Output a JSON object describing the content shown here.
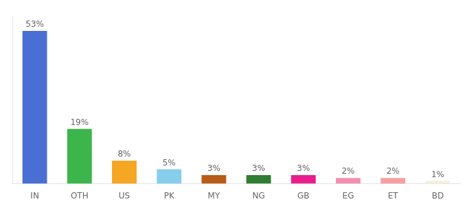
{
  "chart_data": {
    "type": "bar",
    "categories": [
      "IN",
      "OTH",
      "US",
      "PK",
      "MY",
      "NG",
      "GB",
      "EG",
      "ET",
      "BD"
    ],
    "values": [
      53,
      19,
      8,
      5,
      3,
      3,
      3,
      2,
      2,
      1
    ],
    "value_labels": [
      "53%",
      "19%",
      "8%",
      "5%",
      "3%",
      "3%",
      "3%",
      "2%",
      "2%",
      "1%"
    ],
    "colors": [
      "#4a6fd4",
      "#3cb54a",
      "#f5a623",
      "#87ceeb",
      "#b85c1a",
      "#2e7d32",
      "#e91e8c",
      "#f48fb1",
      "#f4a0a0",
      "#f5f0dc"
    ],
    "ylim": [
      0,
      58
    ],
    "grid": false,
    "data_labels": true,
    "tick_labels": "x"
  }
}
